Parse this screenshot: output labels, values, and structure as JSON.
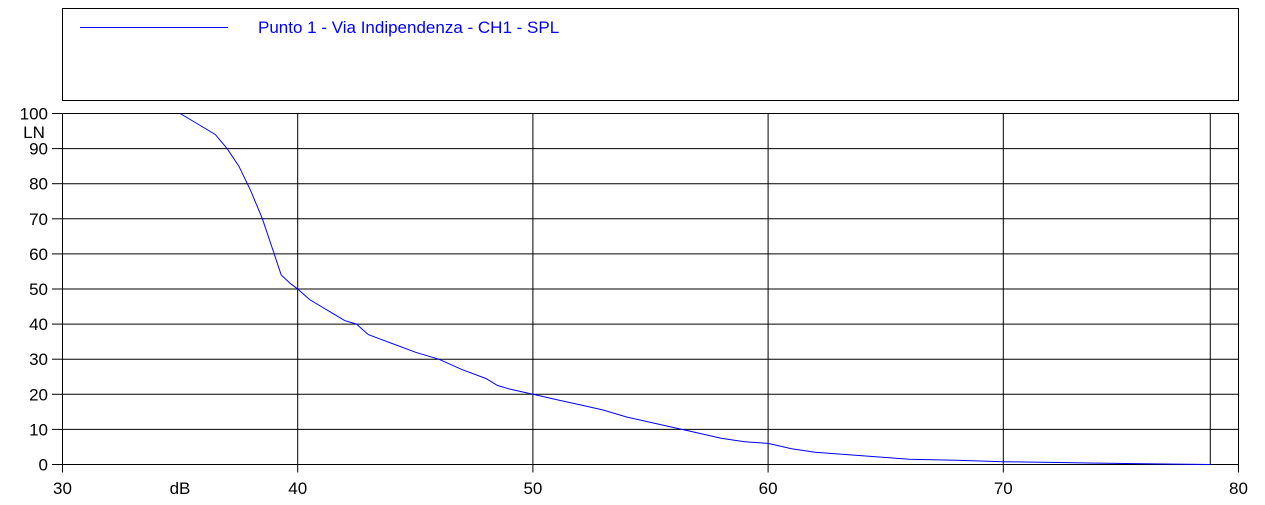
{
  "chart_data": {
    "type": "line",
    "x_label": "dB",
    "y_label": "LN",
    "xlim": [
      30,
      80
    ],
    "xticks": [
      30,
      40,
      50,
      60,
      70,
      80
    ],
    "ylim": [
      0,
      100
    ],
    "yticks": [
      0,
      10,
      20,
      30,
      40,
      50,
      60,
      70,
      80,
      90,
      100
    ],
    "grid": true,
    "series": [
      {
        "name": "Punto 1 - Via Indipendenza - CH1 - SPL",
        "color": "#0000ff",
        "x": [
          35.0,
          35.5,
          36,
          36.5,
          37,
          37.5,
          38,
          38.5,
          39,
          39.3,
          39.7,
          40,
          40.5,
          41,
          41.5,
          42,
          42.5,
          43,
          44,
          45,
          46,
          47,
          48,
          48.5,
          49,
          50,
          51,
          52,
          53,
          54,
          55,
          56,
          57,
          58,
          59,
          60,
          61,
          62,
          63,
          64,
          65,
          66,
          68,
          70,
          72,
          74,
          76,
          78.8
        ],
        "values": [
          100,
          98,
          96,
          94,
          90,
          85,
          78,
          70,
          60,
          54,
          51.5,
          50,
          47,
          45,
          43,
          41,
          40,
          37,
          34.5,
          32,
          30,
          27,
          24.5,
          22.5,
          21.5,
          20,
          18.5,
          17,
          15.5,
          13.5,
          12,
          10.5,
          9,
          7.5,
          6.5,
          6,
          4.5,
          3.5,
          3,
          2.5,
          2,
          1.5,
          1.2,
          0.8,
          0.6,
          0.4,
          0.2,
          0
        ]
      }
    ]
  }
}
